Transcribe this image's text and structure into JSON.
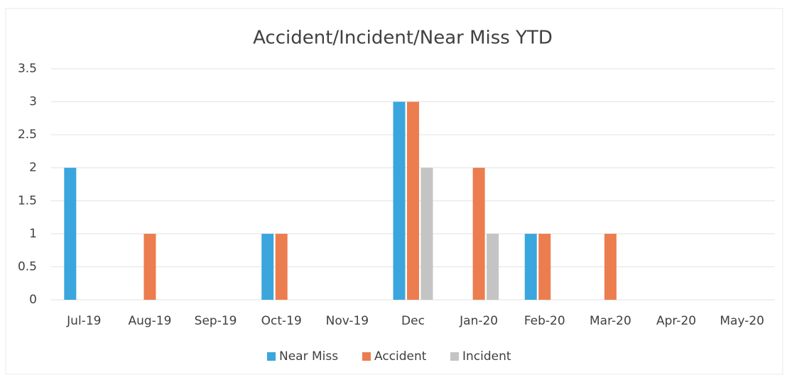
{
  "chart_data": {
    "type": "bar",
    "title": "Accident/Incident/Near Miss YTD",
    "categories": [
      "Jul-19",
      "Aug-19",
      "Sep-19",
      "Oct-19",
      "Nov-19",
      "Dec",
      "Jan-20",
      "Feb-20",
      "Mar-20",
      "Apr-20",
      "May-20"
    ],
    "series": [
      {
        "name": "Near Miss",
        "color": "#3aa6dd",
        "values": [
          2,
          0,
          0,
          1,
          0,
          3,
          0,
          1,
          0,
          0,
          0
        ]
      },
      {
        "name": "Accident",
        "color": "#ec7d4f",
        "values": [
          0,
          1,
          0,
          1,
          0,
          3,
          2,
          1,
          1,
          0,
          0
        ]
      },
      {
        "name": "Incident",
        "color": "#c4c4c4",
        "values": [
          0,
          0,
          0,
          0,
          0,
          2,
          1,
          0,
          0,
          0,
          0
        ]
      }
    ],
    "ylim": [
      0,
      3.5
    ],
    "yticks": [
      0,
      0.5,
      1,
      1.5,
      2,
      2.5,
      3,
      3.5
    ],
    "grid": true,
    "legend": "bottom"
  }
}
